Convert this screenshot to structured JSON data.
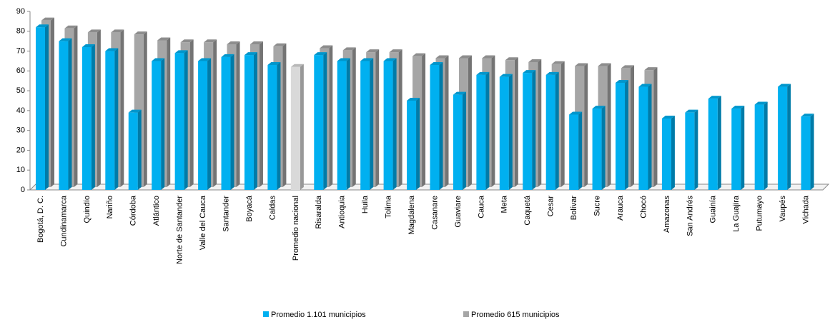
{
  "chart_data": {
    "type": "bar3d",
    "categories": [
      "Bogotá, D. C.",
      "Cundinamarca",
      "Quindío",
      "Nariño",
      "Córdoba",
      "Atlántico",
      "Norte de Santander",
      "Valle del Cauca",
      "Santander",
      "Boyacá",
      "Caldas",
      "Promedio nacional",
      "Risaralda",
      "Antioquia",
      "Huila",
      "Tolima",
      "Magdalena",
      "Casanare",
      "Guaviare",
      "Cauca",
      "Meta",
      "Caquetá",
      "Cesar",
      "Bolívar",
      "Sucre",
      "Arauca",
      "Chocó",
      "Amazonas",
      "San Andrés",
      "Guainía",
      "La Guajira",
      "Putumayo",
      "Vaupés",
      "Vichada"
    ],
    "series": [
      {
        "name": "Promedio 1.101 municipios",
        "color": "#00b0f0",
        "values": [
          82,
          75,
          72,
          70,
          39,
          65,
          69,
          65,
          67,
          68,
          63,
          62,
          68,
          65,
          65,
          65,
          45,
          63,
          48,
          58,
          57,
          59,
          58,
          38,
          41,
          54,
          52,
          36,
          39,
          46,
          41,
          43,
          52,
          37
        ]
      },
      {
        "name": "Promedio 615 municipios",
        "color": "#a6a6a6",
        "values": [
          84,
          80,
          78,
          78,
          77,
          74,
          73,
          73,
          72,
          72,
          71,
          null,
          70,
          69,
          68,
          68,
          66,
          65,
          65,
          65,
          64,
          63,
          62,
          61,
          61,
          60,
          59,
          null,
          null,
          null,
          null,
          null,
          null,
          null
        ]
      }
    ],
    "highlight": {
      "index": 11,
      "color": "#d9d9d9"
    },
    "ylim": [
      0,
      90
    ],
    "yticks": [
      0,
      10,
      20,
      30,
      40,
      50,
      60,
      70,
      80,
      90
    ],
    "grid": false
  }
}
